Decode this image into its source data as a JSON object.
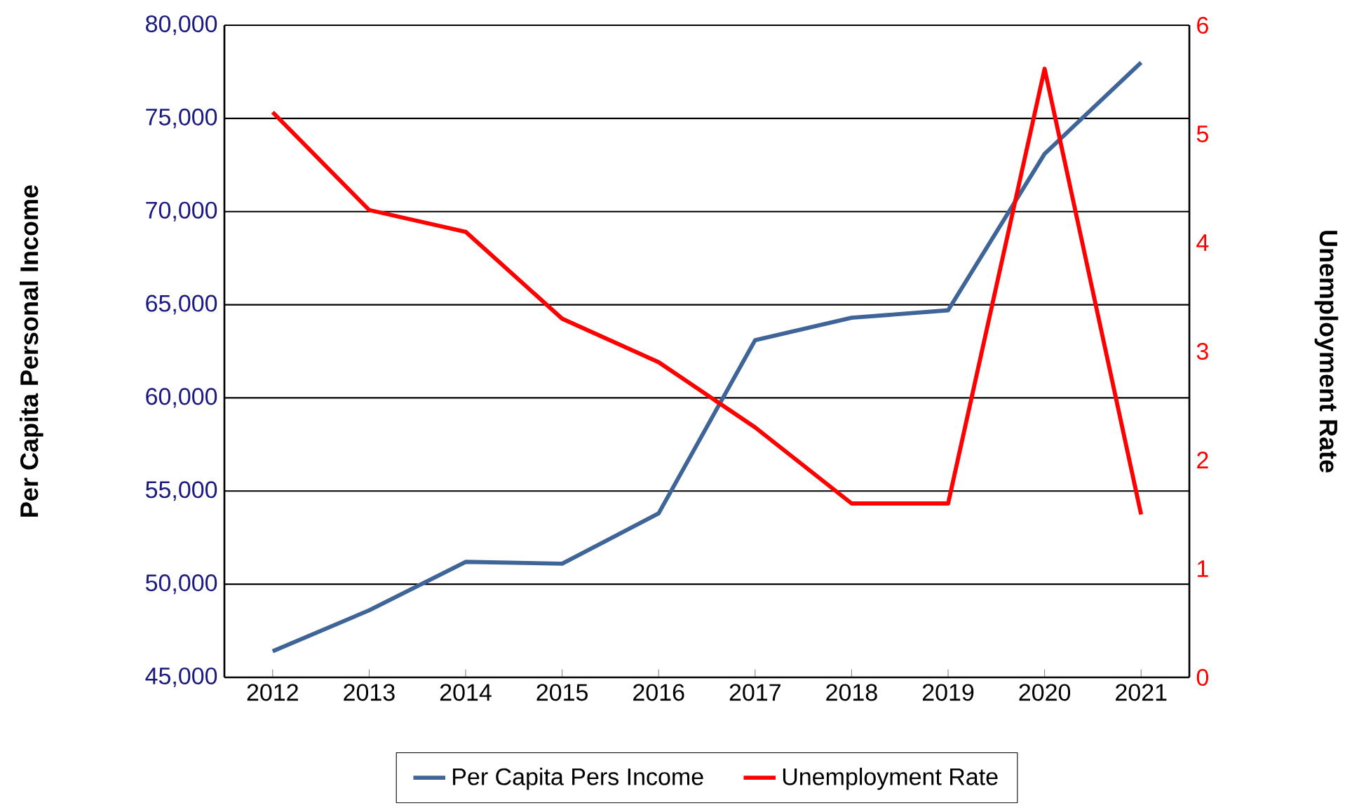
{
  "chart_data": {
    "type": "line",
    "categories": [
      "2012",
      "2013",
      "2014",
      "2015",
      "2016",
      "2017",
      "2018",
      "2019",
      "2020",
      "2021"
    ],
    "ylabel": "Per Capita Personal Income",
    "y2label": "Unemployment Rate",
    "ylim": [
      45000,
      80000
    ],
    "yticks": [
      {
        "value": 45000,
        "label": "45,000"
      },
      {
        "value": 50000,
        "label": "50,000"
      },
      {
        "value": 55000,
        "label": "55,000"
      },
      {
        "value": 60000,
        "label": "60,000"
      },
      {
        "value": 65000,
        "label": "65,000"
      },
      {
        "value": 70000,
        "label": "70,000"
      },
      {
        "value": 75000,
        "label": "75,000"
      },
      {
        "value": 80000,
        "label": "80,000"
      }
    ],
    "y2lim": [
      0,
      6
    ],
    "y2ticks": [
      0,
      1,
      2,
      3,
      4,
      5,
      6
    ],
    "grid": "y",
    "legend": "bottom",
    "series": [
      {
        "name": "Per Capita Pers Income",
        "color": "#3f6598",
        "values": [
          46400,
          48600,
          51200,
          51100,
          53800,
          63100,
          64300,
          64700,
          73100,
          78000
        ]
      },
      {
        "name": "Unemployment Rate",
        "color": "#ff0000",
        "axis": "y2",
        "values": [
          5.2,
          4.3,
          4.1,
          3.3,
          2.9,
          2.3,
          1.6,
          1.6,
          5.6,
          1.5
        ]
      }
    ]
  }
}
